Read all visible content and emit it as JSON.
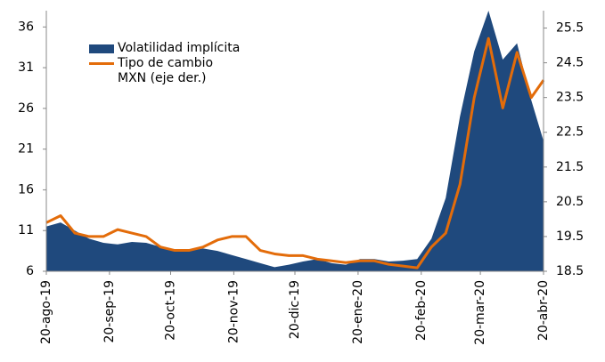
{
  "chart_data": {
    "type": "area-line",
    "x": [
      "2019-08-20",
      "2019-08-27",
      "2019-09-03",
      "2019-09-10",
      "2019-09-17",
      "2019-09-24",
      "2019-10-01",
      "2019-10-08",
      "2019-10-15",
      "2019-10-22",
      "2019-10-29",
      "2019-11-05",
      "2019-11-12",
      "2019-11-19",
      "2019-11-26",
      "2019-12-03",
      "2019-12-10",
      "2019-12-17",
      "2019-12-24",
      "2019-12-31",
      "2020-01-07",
      "2020-01-14",
      "2020-01-21",
      "2020-01-28",
      "2020-02-04",
      "2020-02-11",
      "2020-02-18",
      "2020-02-25",
      "2020-03-03",
      "2020-03-10",
      "2020-03-17",
      "2020-03-24",
      "2020-03-31",
      "2020-04-07",
      "2020-04-14",
      "2020-04-20"
    ],
    "series": [
      {
        "name": "Volatilidad implícita",
        "color": "#1f497d",
        "kind": "area",
        "values": [
          11.5,
          12,
          11,
          10,
          9.5,
          9.3,
          9.6,
          9.5,
          9,
          8.5,
          8.5,
          8.8,
          8.5,
          8,
          7.5,
          7,
          6.5,
          6.8,
          7.2,
          7.5,
          7,
          6.8,
          7.5,
          7.5,
          7.2,
          7.3,
          7.5,
          10,
          15,
          25,
          33,
          38,
          32,
          34,
          27,
          22
        ]
      },
      {
        "name": "Tipo de cambio MXN (eje der.)",
        "color": "#e36c0a",
        "kind": "line",
        "axis": "y2",
        "values": [
          19.9,
          20.1,
          19.6,
          19.5,
          19.5,
          19.7,
          19.6,
          19.5,
          19.2,
          19.1,
          19.1,
          19.2,
          19.4,
          19.5,
          19.5,
          19.1,
          19.0,
          18.95,
          18.95,
          18.85,
          18.8,
          18.75,
          18.8,
          18.8,
          18.7,
          18.65,
          18.6,
          19.2,
          19.6,
          21,
          23.5,
          25.2,
          23.2,
          24.8,
          23.5,
          24.0
        ]
      }
    ],
    "xlim": [
      "2019-08-20",
      "2020-04-20"
    ],
    "xticks": [
      {
        "value": "2019-08-20",
        "label": "20-ago-19"
      },
      {
        "value": "2019-09-20",
        "label": "20-sep-19"
      },
      {
        "value": "2019-10-20",
        "label": "20-oct-19"
      },
      {
        "value": "2019-11-20",
        "label": "20-nov-19"
      },
      {
        "value": "2019-12-20",
        "label": "20-dic-19"
      },
      {
        "value": "2020-01-20",
        "label": "20-ene-20"
      },
      {
        "value": "2020-02-20",
        "label": "20-feb-20"
      },
      {
        "value": "2020-03-20",
        "label": "20-mar-20"
      },
      {
        "value": "2020-04-20",
        "label": "20-abr-20"
      }
    ],
    "ylim": [
      6,
      38
    ],
    "yticks": [
      6,
      11,
      16,
      21,
      26,
      31,
      36
    ],
    "y2lim": [
      18.5,
      26
    ],
    "y2ticks": [
      18.5,
      19.5,
      20.5,
      21.5,
      22.5,
      23.5,
      24.5,
      25.5
    ],
    "legend": "upper-left"
  }
}
